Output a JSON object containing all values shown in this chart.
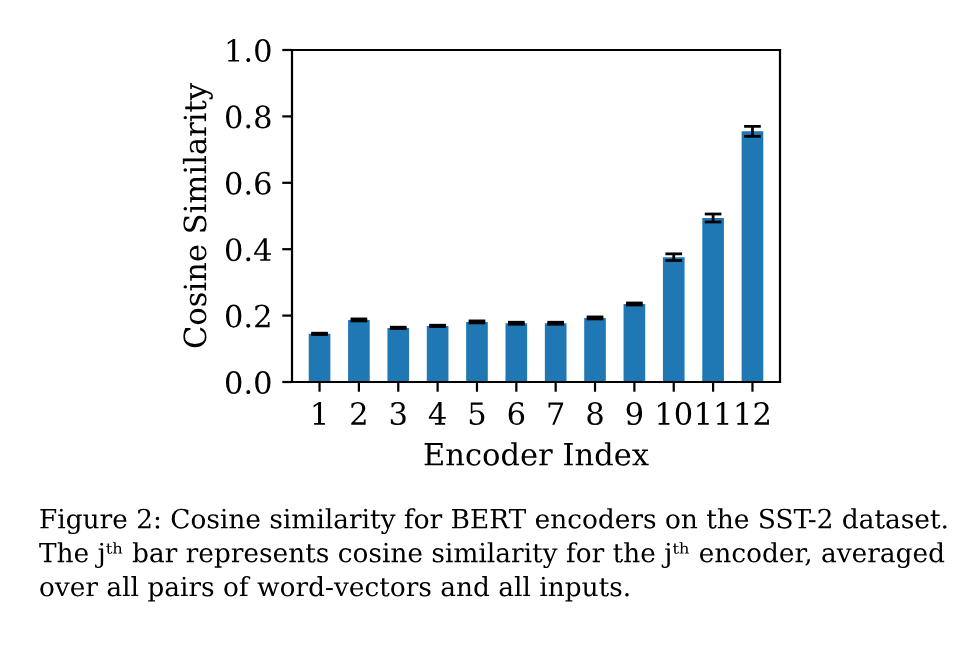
{
  "chart_data": {
    "type": "bar",
    "xlabel": "Encoder Index",
    "ylabel": "Cosine Similarity",
    "categories": [
      "1",
      "2",
      "3",
      "4",
      "5",
      "6",
      "7",
      "8",
      "9",
      "10",
      "11",
      "12"
    ],
    "values": [
      0.145,
      0.187,
      0.163,
      0.169,
      0.181,
      0.177,
      0.177,
      0.193,
      0.235,
      0.376,
      0.494,
      0.755
    ],
    "errors": [
      0.002,
      0.003,
      0.002,
      0.002,
      0.003,
      0.003,
      0.003,
      0.003,
      0.003,
      0.01,
      0.012,
      0.015
    ],
    "color": "#1f77b4",
    "ylim": [
      0,
      1
    ],
    "yticks": [
      {
        "value": 0,
        "label": "0.0"
      },
      {
        "value": 0.2,
        "label": "0.2"
      },
      {
        "value": 0.4,
        "label": "0.4"
      },
      {
        "value": 0.6,
        "label": "0.6"
      },
      {
        "value": 0.8,
        "label": "0.8"
      },
      {
        "value": 1,
        "label": "1.0"
      }
    ],
    "grid": false,
    "legend": false,
    "annotations": [
      "Figure 2: Cosine similarity for BERT encoders on the SST-2 dataset. The jᵗʰ bar represents cosine similarity for the jᵗʰ encoder, averaged over all pairs of word-vectors and all inputs."
    ]
  }
}
